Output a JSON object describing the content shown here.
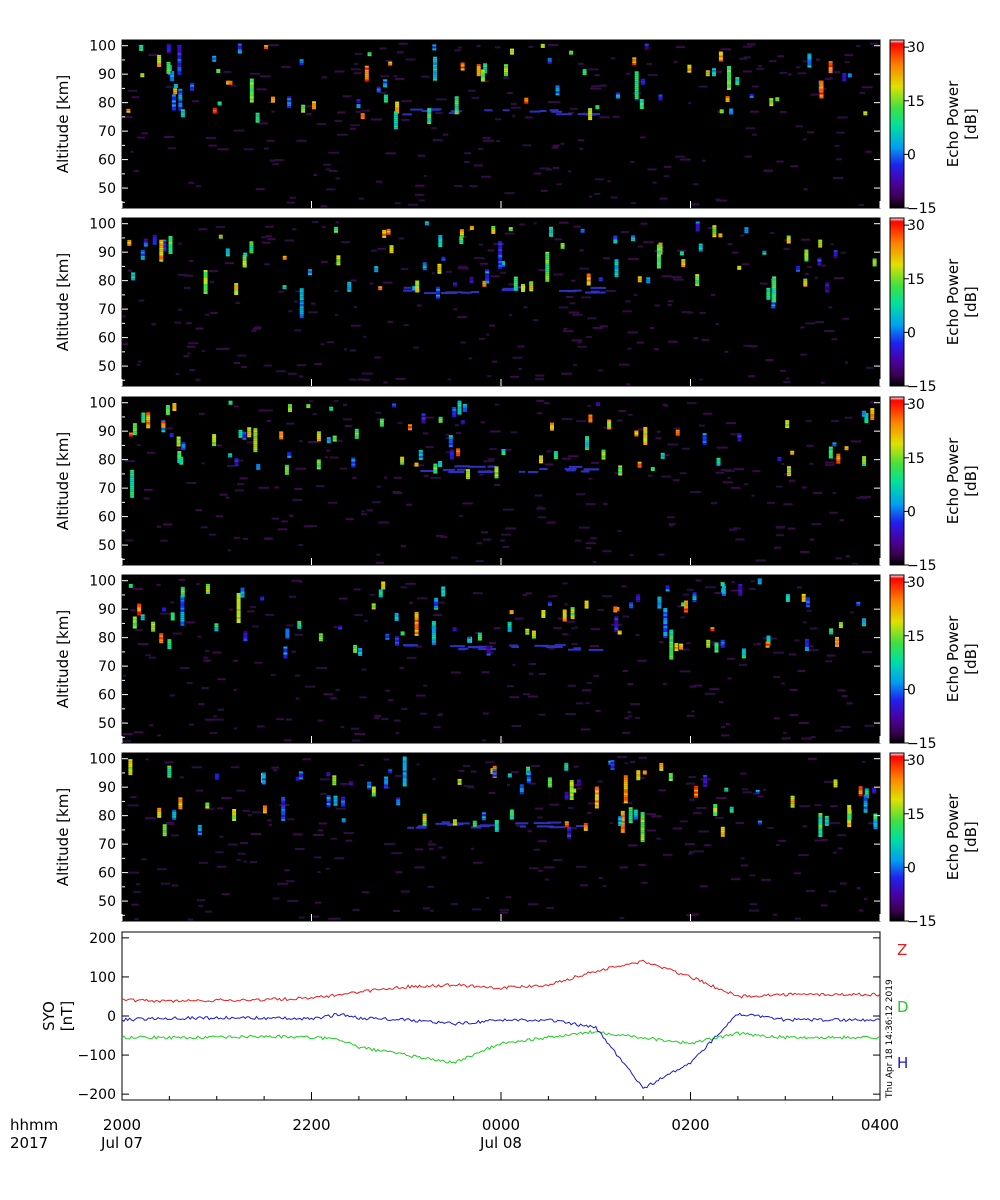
{
  "colorbar_label": "Echo Power\n[dB]",
  "colorbar_ticks": [
    "30",
    "15",
    "0",
    "−15"
  ],
  "chart_data": [
    {
      "type": "heatmap",
      "ylabel": "Altitude [km]",
      "yticks": [
        "100",
        "90",
        "80",
        "70",
        "60",
        "50"
      ],
      "ylim": [
        43,
        102
      ],
      "zlim": [
        -15,
        32
      ],
      "zunit": "dB"
    },
    {
      "type": "heatmap",
      "ylabel": "Altitude [km]",
      "yticks": [
        "100",
        "90",
        "80",
        "70",
        "60",
        "50"
      ],
      "ylim": [
        43,
        102
      ],
      "zlim": [
        -15,
        32
      ],
      "zunit": "dB"
    },
    {
      "type": "heatmap",
      "ylabel": "Altitude [km]",
      "yticks": [
        "100",
        "90",
        "80",
        "70",
        "60",
        "50"
      ],
      "ylim": [
        43,
        102
      ],
      "zlim": [
        -15,
        32
      ],
      "zunit": "dB"
    },
    {
      "type": "heatmap",
      "ylabel": "Altitude [km]",
      "yticks": [
        "100",
        "90",
        "80",
        "70",
        "60",
        "50"
      ],
      "ylim": [
        43,
        102
      ],
      "zlim": [
        -15,
        32
      ],
      "zunit": "dB"
    },
    {
      "type": "heatmap",
      "ylabel": "Altitude [km]",
      "yticks": [
        "100",
        "90",
        "80",
        "70",
        "60",
        "50"
      ],
      "ylim": [
        43,
        102
      ],
      "zlim": [
        -15,
        32
      ],
      "zunit": "dB"
    },
    {
      "type": "line",
      "ylabel": "SYO\n[nT]",
      "yticks": [
        "200",
        "100",
        "0",
        "−100",
        "−200"
      ],
      "ylim": [
        -215,
        215
      ],
      "x": [
        0,
        0.5,
        1,
        1.5,
        2,
        2.3,
        2.5,
        3,
        3.5,
        4,
        4.5,
        5,
        5.5,
        6,
        6.5,
        7,
        7.5,
        8
      ],
      "series": [
        {
          "name": "Z",
          "color": "#e02020",
          "values": [
            40,
            38,
            40,
            42,
            45,
            55,
            62,
            75,
            80,
            72,
            80,
            115,
            140,
            100,
            50,
            55,
            55,
            55
          ]
        },
        {
          "name": "D",
          "color": "#22cc22",
          "values": [
            -55,
            -55,
            -55,
            -52,
            -55,
            -60,
            -80,
            -100,
            -120,
            -70,
            -55,
            -40,
            -55,
            -70,
            -45,
            -55,
            -55,
            -55
          ]
        },
        {
          "name": "H",
          "color": "#1a1acc",
          "values": [
            -10,
            -5,
            -5,
            -5,
            -8,
            5,
            -5,
            -10,
            -20,
            -10,
            -10,
            -30,
            -185,
            -120,
            5,
            -10,
            -10,
            -10
          ]
        }
      ]
    }
  ],
  "x_axis": {
    "label_row1": "hhmm",
    "label_row2": "2017",
    "ticks": [
      {
        "x": 0,
        "time": "2000",
        "date": "Jul 07"
      },
      {
        "x": 2,
        "time": "2200",
        "date": ""
      },
      {
        "x": 4,
        "time": "0000",
        "date": "Jul 08"
      },
      {
        "x": 6,
        "time": "0200",
        "date": ""
      },
      {
        "x": 8,
        "time": "0400",
        "date": ""
      }
    ]
  },
  "timestamp": "Thu Apr 18 14:36:12 2019"
}
